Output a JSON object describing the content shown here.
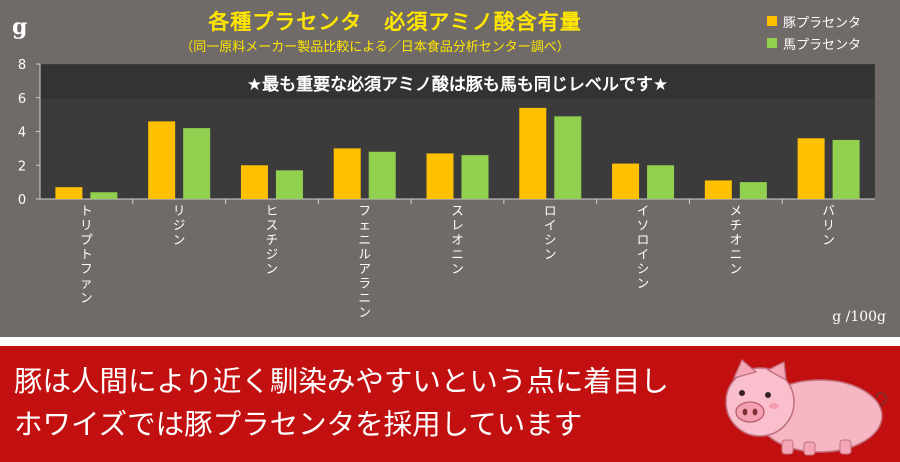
{
  "chart_data": {
    "type": "bar",
    "title": "各種プラセンタ　必須アミノ酸含有量",
    "subtitle": "（同一原料メーカー製品比較による／日本食品分析センター調べ）",
    "y_unit": "g",
    "bottom_unit": "g /100g",
    "banner_in_chart": "★最も重要な必須アミノ酸は豚も馬も同じレベルです★",
    "categories": [
      "トリプトファン",
      "リジン",
      "ヒスチジン",
      "フェニルアラニン",
      "スレオニン",
      "ロイシン",
      "イソロイシン",
      "メチオニン",
      "バリン"
    ],
    "series": [
      {
        "name": "豚プラセンタ",
        "color": "#ffc000",
        "values": [
          0.7,
          4.6,
          2.0,
          3.0,
          2.7,
          5.4,
          2.1,
          1.1,
          3.6
        ]
      },
      {
        "name": "馬プラセンタ",
        "color": "#92d050",
        "values": [
          0.4,
          4.2,
          1.7,
          2.8,
          2.6,
          4.9,
          2.0,
          1.0,
          3.5
        ]
      }
    ],
    "ylim": [
      0,
      8
    ],
    "yticks": [
      0,
      2,
      4,
      6,
      8
    ],
    "grid": false,
    "legend_position": "top-right",
    "plot_background": "#3b3b3b"
  },
  "footer": {
    "line1": "豚は人間により近く馴染みやすいという点に着目し",
    "line2": "ホワイズでは豚プラセンタを採用しています"
  },
  "illustration": "pig-icon"
}
